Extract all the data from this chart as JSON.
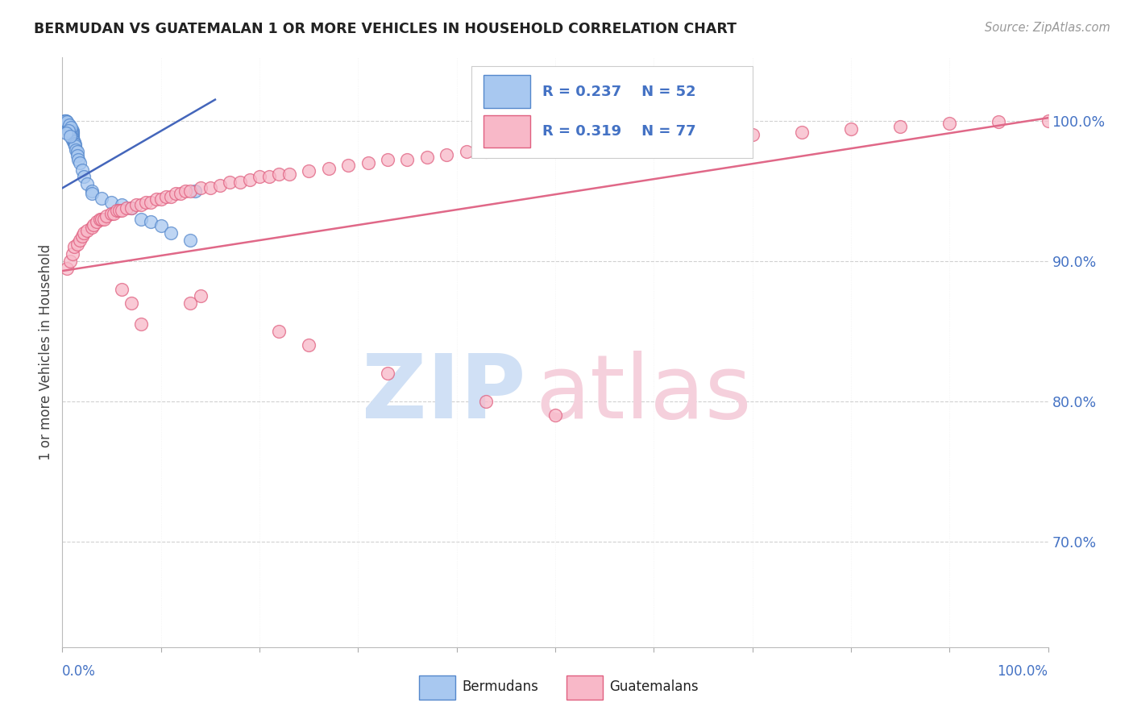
{
  "title": "BERMUDAN VS GUATEMALAN 1 OR MORE VEHICLES IN HOUSEHOLD CORRELATION CHART",
  "source": "Source: ZipAtlas.com",
  "ylabel": "1 or more Vehicles in Household",
  "xlim": [
    0.0,
    1.0
  ],
  "ylim": [
    0.625,
    1.045
  ],
  "yticks": [
    0.7,
    0.8,
    0.9,
    1.0
  ],
  "ytick_labels": [
    "70.0%",
    "80.0%",
    "90.0%",
    "100.0%"
  ],
  "legend_R_blue": "R = 0.237",
  "legend_N_blue": "N = 52",
  "legend_R_pink": "R = 0.319",
  "legend_N_pink": "N = 77",
  "blue_scatter_color": "#A8C8F0",
  "blue_edge_color": "#5588CC",
  "pink_scatter_color": "#F8B8C8",
  "pink_edge_color": "#E06080",
  "blue_line_color": "#4466BB",
  "pink_line_color": "#E06888",
  "axis_label_color": "#4472C4",
  "legend_text_color": "#4472C4",
  "title_color": "#222222",
  "source_color": "#999999",
  "blue_scatter_x": [
    0.002,
    0.003,
    0.004,
    0.004,
    0.005,
    0.005,
    0.006,
    0.007,
    0.007,
    0.008,
    0.008,
    0.009,
    0.009,
    0.01,
    0.01,
    0.01,
    0.01,
    0.01,
    0.01,
    0.01,
    0.01,
    0.012,
    0.012,
    0.013,
    0.013,
    0.014,
    0.015,
    0.015,
    0.016,
    0.018,
    0.02,
    0.022,
    0.025,
    0.03,
    0.03,
    0.04,
    0.05,
    0.06,
    0.07,
    0.08,
    0.09,
    0.1,
    0.11,
    0.13,
    0.135,
    0.003,
    0.005,
    0.007,
    0.009,
    0.006,
    0.004,
    0.008
  ],
  "blue_scatter_y": [
    1.0,
    1.0,
    1.0,
    0.999,
    0.998,
    0.997,
    0.997,
    0.996,
    0.995,
    0.995,
    0.994,
    0.994,
    0.993,
    0.993,
    0.992,
    0.991,
    0.99,
    0.989,
    0.988,
    0.987,
    0.986,
    0.985,
    0.984,
    0.983,
    0.982,
    0.979,
    0.978,
    0.975,
    0.972,
    0.97,
    0.965,
    0.96,
    0.955,
    0.95,
    0.948,
    0.945,
    0.942,
    0.94,
    0.938,
    0.93,
    0.928,
    0.925,
    0.92,
    0.915,
    0.95,
    1.0,
    0.999,
    0.997,
    0.995,
    0.993,
    0.991,
    0.989
  ],
  "pink_scatter_x": [
    0.005,
    0.008,
    0.01,
    0.012,
    0.015,
    0.018,
    0.02,
    0.022,
    0.025,
    0.03,
    0.032,
    0.035,
    0.038,
    0.04,
    0.042,
    0.045,
    0.05,
    0.052,
    0.055,
    0.058,
    0.06,
    0.065,
    0.07,
    0.075,
    0.08,
    0.085,
    0.09,
    0.095,
    0.1,
    0.105,
    0.11,
    0.115,
    0.12,
    0.125,
    0.13,
    0.14,
    0.15,
    0.16,
    0.17,
    0.18,
    0.19,
    0.2,
    0.21,
    0.22,
    0.23,
    0.25,
    0.27,
    0.29,
    0.31,
    0.33,
    0.35,
    0.37,
    0.39,
    0.41,
    0.43,
    0.45,
    0.5,
    0.55,
    0.6,
    0.65,
    0.7,
    0.75,
    0.8,
    0.85,
    0.9,
    0.95,
    1.0,
    0.13,
    0.14,
    0.22,
    0.25,
    0.33,
    0.43,
    0.5,
    0.06,
    0.07,
    0.08
  ],
  "pink_scatter_y": [
    0.895,
    0.9,
    0.905,
    0.91,
    0.912,
    0.915,
    0.918,
    0.92,
    0.922,
    0.924,
    0.926,
    0.928,
    0.93,
    0.93,
    0.93,
    0.932,
    0.934,
    0.934,
    0.936,
    0.936,
    0.936,
    0.938,
    0.938,
    0.94,
    0.94,
    0.942,
    0.942,
    0.944,
    0.944,
    0.946,
    0.946,
    0.948,
    0.948,
    0.95,
    0.95,
    0.952,
    0.952,
    0.954,
    0.956,
    0.956,
    0.958,
    0.96,
    0.96,
    0.962,
    0.962,
    0.964,
    0.966,
    0.968,
    0.97,
    0.972,
    0.972,
    0.974,
    0.976,
    0.978,
    0.978,
    0.98,
    0.982,
    0.984,
    0.986,
    0.988,
    0.99,
    0.992,
    0.994,
    0.996,
    0.998,
    0.999,
    1.0,
    0.87,
    0.875,
    0.85,
    0.84,
    0.82,
    0.8,
    0.79,
    0.88,
    0.87,
    0.855
  ],
  "blue_line_x": [
    0.0,
    0.155
  ],
  "blue_line_y": [
    0.952,
    1.015
  ],
  "pink_line_x": [
    0.0,
    1.0
  ],
  "pink_line_y": [
    0.893,
    1.002
  ],
  "watermark_zip_color": "#D0E0F5",
  "watermark_atlas_color": "#F5D0DC"
}
